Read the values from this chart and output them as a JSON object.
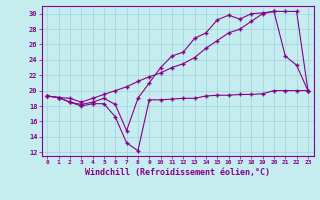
{
  "xlabel": "Windchill (Refroidissement éolien,°C)",
  "background_color": "#c5edf0",
  "grid_color": "#a0d4d8",
  "line_color": "#880088",
  "x_ticks": [
    0,
    1,
    2,
    3,
    4,
    5,
    6,
    7,
    8,
    9,
    10,
    11,
    12,
    13,
    14,
    15,
    16,
    17,
    18,
    19,
    20,
    21,
    22,
    23
  ],
  "ylim": [
    11.5,
    31.0
  ],
  "y_ticks": [
    12,
    14,
    16,
    18,
    20,
    22,
    24,
    26,
    28,
    30
  ],
  "series1_x": [
    0,
    1,
    2,
    3,
    4,
    5,
    6,
    7,
    8,
    9,
    10,
    11,
    12,
    13,
    14,
    15,
    16,
    17,
    18,
    19,
    20,
    21,
    22,
    23
  ],
  "series1_y": [
    19.3,
    19.1,
    18.5,
    18.0,
    18.3,
    18.3,
    16.6,
    13.2,
    12.2,
    18.8,
    18.8,
    18.9,
    19.0,
    19.0,
    19.3,
    19.4,
    19.4,
    19.5,
    19.5,
    19.6,
    20.0,
    20.0,
    20.0,
    20.0
  ],
  "series2_x": [
    0,
    1,
    2,
    3,
    4,
    5,
    6,
    7,
    8,
    9,
    10,
    11,
    12,
    13,
    14,
    15,
    16,
    17,
    18,
    19,
    20,
    21,
    22,
    23
  ],
  "series2_y": [
    19.3,
    19.1,
    18.5,
    18.2,
    18.5,
    19.0,
    18.2,
    14.8,
    19.0,
    21.0,
    23.0,
    24.5,
    25.0,
    26.8,
    27.5,
    29.2,
    29.8,
    29.3,
    30.0,
    30.1,
    30.3,
    24.5,
    23.3,
    20.0
  ],
  "series3_x": [
    0,
    1,
    2,
    3,
    4,
    5,
    6,
    7,
    8,
    9,
    10,
    11,
    12,
    13,
    14,
    15,
    16,
    17,
    18,
    19,
    20,
    21,
    22,
    23
  ],
  "series3_y": [
    19.3,
    19.1,
    19.0,
    18.5,
    19.0,
    19.5,
    20.0,
    20.5,
    21.2,
    21.8,
    22.3,
    23.0,
    23.5,
    24.3,
    25.5,
    26.5,
    27.5,
    28.0,
    29.0,
    30.0,
    30.3,
    30.3,
    30.3,
    20.0
  ]
}
